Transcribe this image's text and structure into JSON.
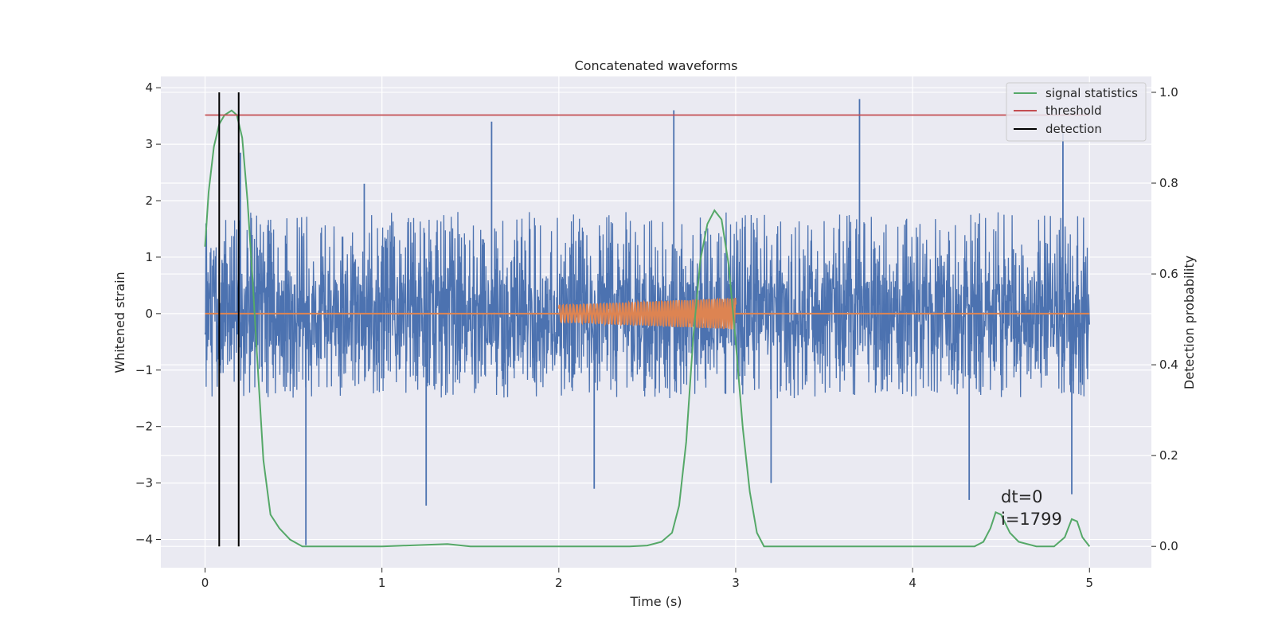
{
  "chart_data": {
    "type": "line",
    "title": "Concatenated waveforms",
    "xlabel": "Time (s)",
    "ylabel": "Whitened strain",
    "y2label": "Detection probability",
    "xlim": [
      -0.25,
      5.35
    ],
    "ylim": [
      -4.5,
      4.2
    ],
    "y2lim": [
      -0.047,
      1.035
    ],
    "xticks": [
      0,
      1,
      2,
      3,
      4,
      5
    ],
    "yticks": [
      -4,
      -3,
      -2,
      -1,
      0,
      1,
      2,
      3,
      4
    ],
    "y2ticks": [
      0.0,
      0.2,
      0.4,
      0.6,
      0.8,
      1.0
    ],
    "xtick_labels": [
      "0",
      "1",
      "2",
      "3",
      "4",
      "5"
    ],
    "ytick_labels": [
      "−4",
      "−3",
      "−2",
      "−1",
      "0",
      "1",
      "2",
      "3",
      "4"
    ],
    "y2tick_labels": [
      "0.0",
      "0.2",
      "0.4",
      "0.6",
      "0.8",
      "1.0"
    ],
    "grid": true,
    "legend_position": "top-right",
    "annotations": [
      "dt=0",
      "i=1799"
    ],
    "series": [
      {
        "kind": "whitened-strain-noise",
        "axis": "left",
        "color": "#4c72b0",
        "x_range": [
          0,
          5
        ],
        "typical_envelope": [
          -1.5,
          1.8
        ],
        "peaks": [
          {
            "x": 0.2,
            "y": 2.85
          },
          {
            "x": 0.57,
            "y": -4.1
          },
          {
            "x": 0.9,
            "y": 2.3
          },
          {
            "x": 1.25,
            "y": -3.4
          },
          {
            "x": 1.62,
            "y": 3.4
          },
          {
            "x": 2.2,
            "y": -3.1
          },
          {
            "x": 2.65,
            "y": 3.6
          },
          {
            "x": 3.2,
            "y": -3.0
          },
          {
            "x": 3.7,
            "y": 3.8
          },
          {
            "x": 4.32,
            "y": -3.3
          },
          {
            "x": 4.85,
            "y": 3.2
          },
          {
            "x": 4.9,
            "y": -3.2
          }
        ]
      },
      {
        "kind": "injected-chirp",
        "axis": "left",
        "color": "#dd8452",
        "x_range": [
          2.0,
          3.0
        ],
        "amplitude_start": 0.15,
        "amplitude_end": 0.28,
        "baseline_x_range": [
          0,
          5
        ],
        "baseline_y": 0
      },
      {
        "name": "signal statistics",
        "axis": "right",
        "color": "#55a868",
        "x": [
          0.0,
          0.02,
          0.05,
          0.08,
          0.11,
          0.15,
          0.18,
          0.21,
          0.24,
          0.27,
          0.3,
          0.33,
          0.37,
          0.42,
          0.48,
          0.55,
          0.7,
          1.0,
          1.37,
          1.5,
          2.0,
          2.4,
          2.5,
          2.58,
          2.64,
          2.68,
          2.72,
          2.76,
          2.8,
          2.84,
          2.88,
          2.92,
          2.96,
          3.0,
          3.04,
          3.08,
          3.12,
          3.16,
          3.25,
          3.5,
          4.0,
          4.35,
          4.4,
          4.44,
          4.47,
          4.5,
          4.55,
          4.6,
          4.7,
          4.8,
          4.86,
          4.9,
          4.93,
          4.96,
          5.0
        ],
        "y": [
          0.66,
          0.78,
          0.88,
          0.93,
          0.95,
          0.96,
          0.95,
          0.9,
          0.76,
          0.58,
          0.38,
          0.19,
          0.07,
          0.04,
          0.015,
          0.0,
          0.0,
          0.0,
          0.005,
          0.0,
          0.0,
          0.0,
          0.002,
          0.01,
          0.03,
          0.09,
          0.23,
          0.46,
          0.63,
          0.71,
          0.74,
          0.72,
          0.62,
          0.45,
          0.26,
          0.12,
          0.03,
          0.0,
          0.0,
          0.0,
          0.0,
          0.0,
          0.01,
          0.04,
          0.075,
          0.07,
          0.03,
          0.01,
          0.0,
          0.0,
          0.02,
          0.06,
          0.055,
          0.02,
          0.0
        ]
      },
      {
        "name": "threshold",
        "axis": "right",
        "color": "#c44e52",
        "x_range": [
          0,
          5
        ],
        "value": 0.95
      },
      {
        "name": "detection",
        "axis": "right",
        "color": "#000000",
        "x": [
          0.08,
          0.19
        ],
        "y_range": [
          0.0,
          1.0
        ]
      }
    ]
  }
}
